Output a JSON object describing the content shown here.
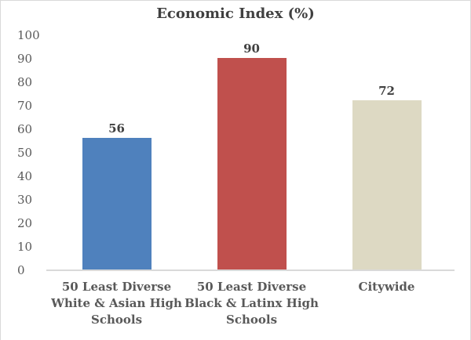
{
  "chart_data": {
    "type": "bar",
    "title": "Economic Index (%)",
    "categories": [
      "50 Least Diverse White & Asian High Schools",
      "50 Least Diverse Black & Latinx High Schools",
      "Citywide"
    ],
    "category_label_lines": [
      [
        "50 Least Diverse",
        "White & Asian High",
        "Schools"
      ],
      [
        "50 Least Diverse",
        "Black & Latinx High",
        "Schools"
      ],
      [
        "Citywide"
      ]
    ],
    "values": [
      56,
      90,
      72
    ],
    "data_labels": [
      "56",
      "90",
      "72"
    ],
    "bar_colors": [
      "#4f81bd",
      "#c0504d",
      "#ddd9c3"
    ],
    "xlabel": "",
    "ylabel": "",
    "ylim": [
      0,
      100
    ],
    "yticks": [
      0,
      10,
      20,
      30,
      40,
      50,
      60,
      70,
      80,
      90,
      100
    ],
    "grid": false,
    "legend": "none",
    "colors": {
      "title_text": "#404040",
      "data_label_text": "#404040",
      "tick_label_text": "#595959",
      "category_label_text": "#595959",
      "axis_line": "#d9d9d9",
      "chart_border": "#d9d9d9",
      "background": "#ffffff"
    }
  }
}
